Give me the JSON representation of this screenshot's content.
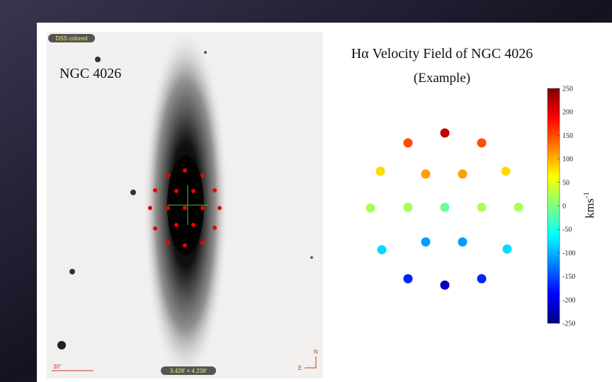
{
  "left_panel": {
    "badge": "DSS colored",
    "label": "NGC 4026",
    "scale": "30\"",
    "size": "3.428' × 4.238'",
    "compass_n": "N",
    "compass_e": "E"
  },
  "velocity_field": {
    "title": "Hα Velocity Field of NGC 4026",
    "subtitle": "(Example)",
    "colorbar_label": "kms",
    "colorbar_label_sup": "-1",
    "clim": [
      -250,
      250
    ],
    "colorbar_ticks": [
      250,
      200,
      150,
      100,
      50,
      0,
      -50,
      -100,
      -150,
      -200,
      -250
    ],
    "values": [
      220,
      150,
      150,
      80,
      110,
      110,
      80,
      20,
      20,
      -10,
      20,
      20,
      -80,
      -110,
      -110,
      -80,
      -170,
      -170,
      -220
    ]
  }
}
